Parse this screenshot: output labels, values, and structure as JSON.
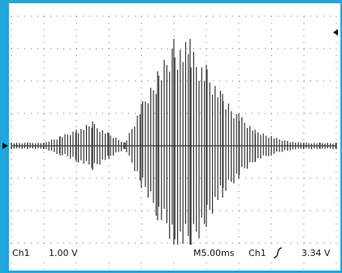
{
  "chart_data": {
    "type": "waveform",
    "x": [
      0,
      2.5,
      5,
      7.5,
      10,
      12.5,
      15,
      17.5,
      20,
      22.5,
      25,
      27.5,
      30,
      32.5,
      35,
      37.5,
      40,
      42.5,
      45,
      47.5,
      50
    ],
    "values": [
      0.1,
      0.1,
      0.1,
      0.3,
      0.5,
      0.75,
      0.4,
      0.1,
      1.3,
      2.3,
      3.3,
      3.3,
      2.5,
      1.6,
      1.0,
      0.5,
      0.3,
      0.15,
      0.1,
      0.1,
      0.1
    ],
    "xlim": [
      0,
      50
    ],
    "ylim": [
      -4,
      4
    ],
    "xticks": [
      0,
      5,
      10,
      15,
      20,
      25,
      30,
      35,
      40,
      45,
      50
    ],
    "yticks": [
      -4,
      -3,
      -2,
      -1,
      0,
      1,
      2,
      3,
      4
    ],
    "readout": {
      "channel": "Ch1",
      "scale": "1.00 V",
      "timebase": "M5.00ms",
      "trigger_channel": "Ch1",
      "trigger_level": "3.34 V"
    }
  }
}
